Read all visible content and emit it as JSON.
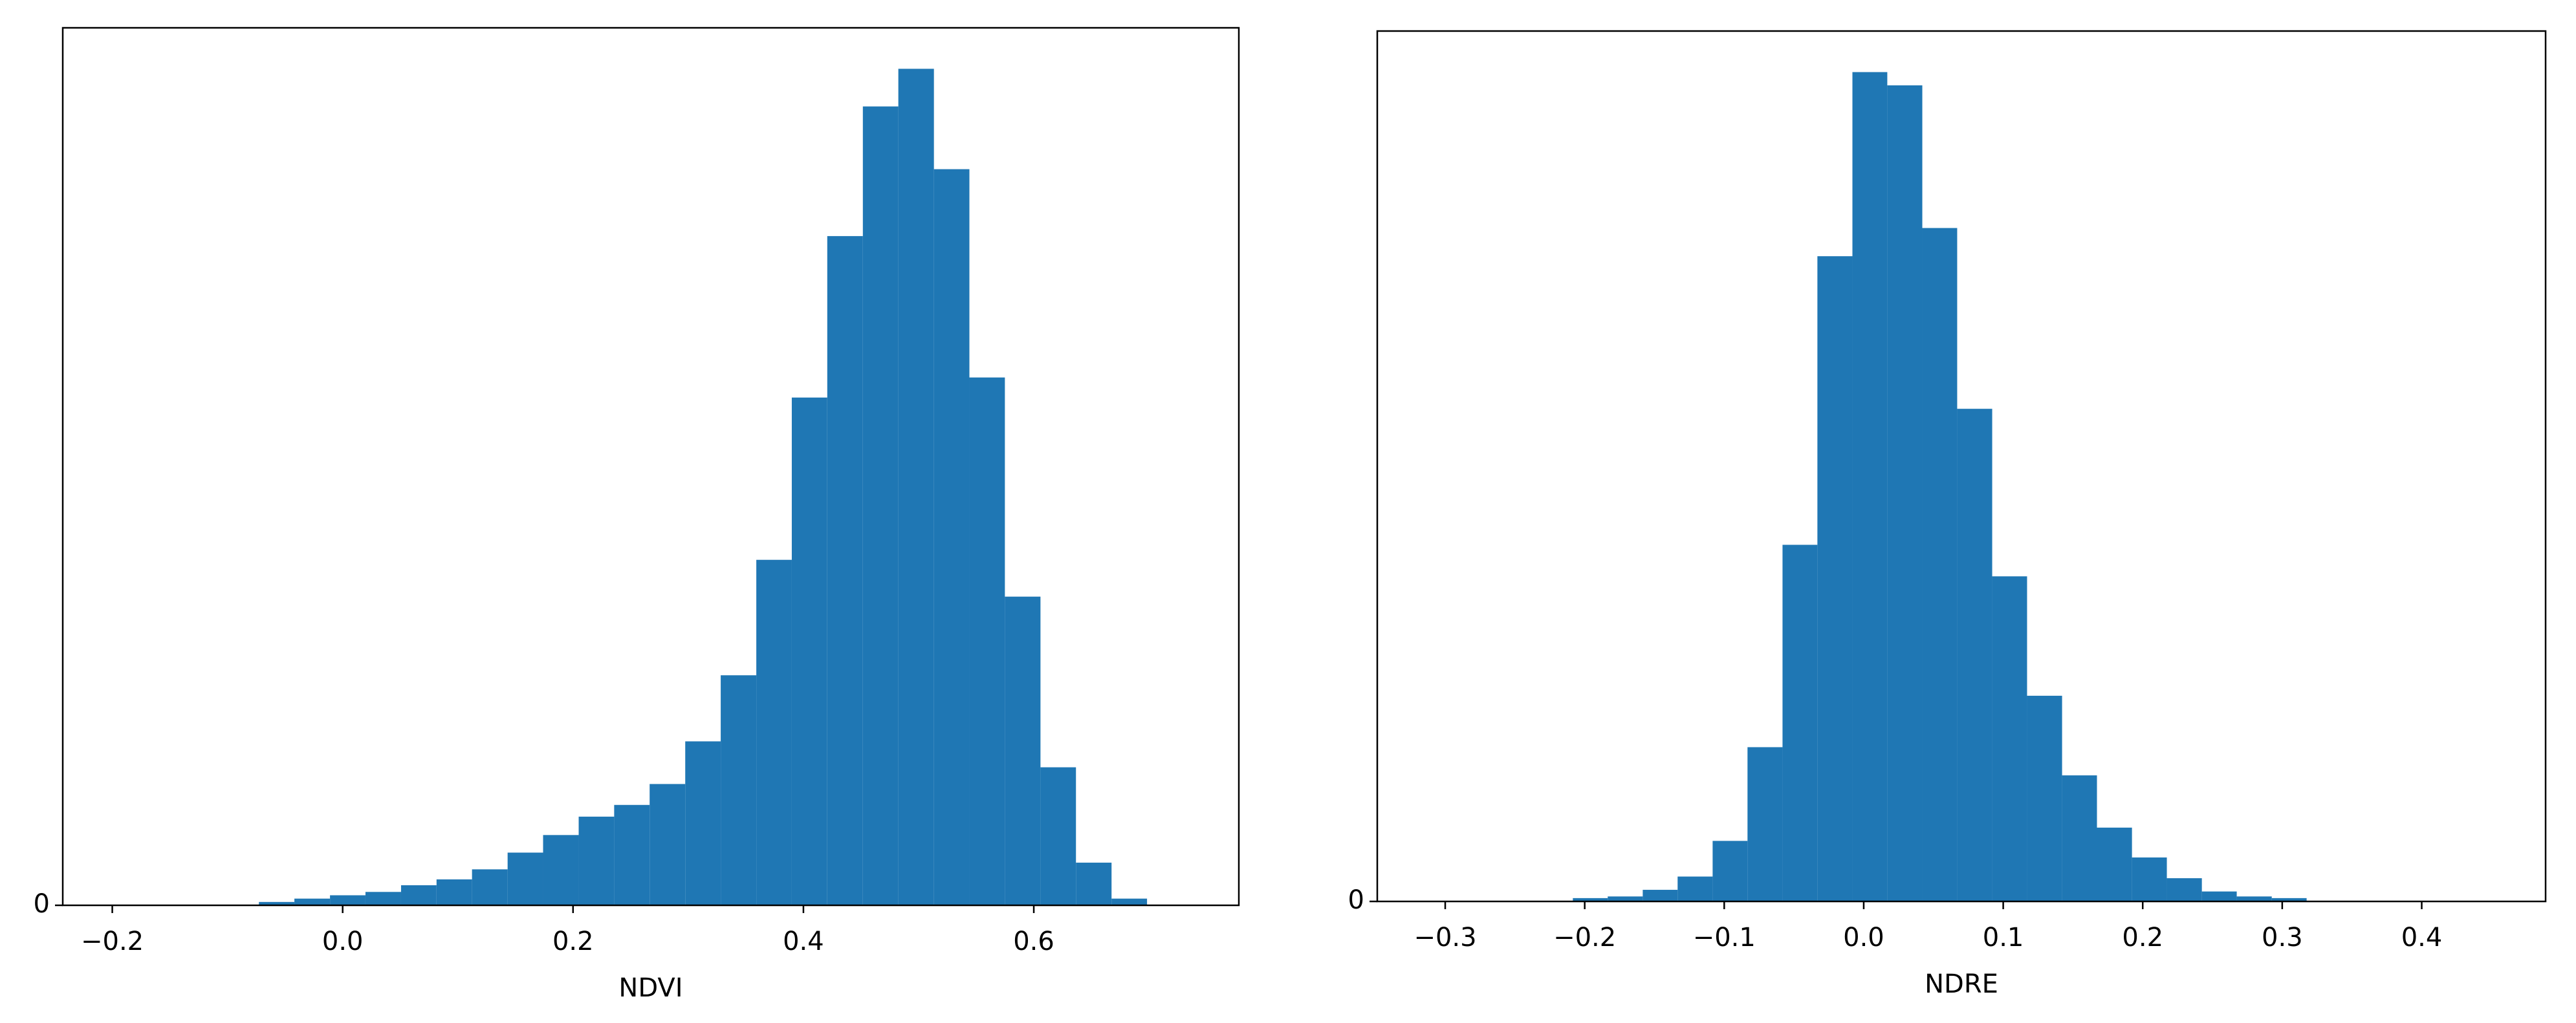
{
  "chart_data": [
    {
      "type": "histogram",
      "x_label": "NDVI",
      "color": "#1f77b4",
      "bins": [
        -0.0727,
        -0.0419,
        -0.011,
        0.0198,
        0.0507,
        0.0815,
        0.1123,
        0.1432,
        0.174,
        0.2049,
        0.2357,
        0.2665,
        0.2974,
        0.3282,
        0.3591,
        0.3899,
        0.4207,
        0.4516,
        0.4824,
        0.5133,
        0.5441,
        0.5749,
        0.6058,
        0.6366,
        0.6675,
        0.6983
      ],
      "values": [
        0.4,
        0.8,
        1.2,
        1.6,
        2.4,
        3.1,
        4.3,
        6.3,
        8.4,
        10.6,
        12.0,
        14.5,
        19.6,
        27.5,
        41.3,
        60.7,
        80.0,
        95.5,
        100,
        88.0,
        63.1,
        36.9,
        16.5,
        5.1,
        0.8
      ],
      "xlim": [
        -0.243,
        0.778
      ],
      "ylim": [
        0,
        104.9
      ],
      "xticks": [
        {
          "value": -0.2,
          "label": "−0.2"
        },
        {
          "value": 0,
          "label": "0.0"
        },
        0.2,
        0.4,
        0.6
      ],
      "yticks": [
        0
      ]
    },
    {
      "type": "histogram",
      "x_label": "NDRE",
      "color": "#1f77b4",
      "bins": [
        -0.2085,
        -0.1835,
        -0.1584,
        -0.1334,
        -0.1083,
        -0.0833,
        -0.0582,
        -0.0332,
        -0.0081,
        0.0169,
        0.042,
        0.067,
        0.0921,
        0.1171,
        0.1422,
        0.1672,
        0.1923,
        0.2173,
        0.2424,
        0.2674,
        0.2925,
        0.3175
      ],
      "values": [
        0.4,
        0.6,
        1.4,
        3.0,
        7.3,
        18.6,
        43.0,
        77.8,
        100,
        98.4,
        81.2,
        59.4,
        39.2,
        24.8,
        15.2,
        8.9,
        5.3,
        2.8,
        1.2,
        0.6,
        0.4
      ],
      "xlim": [
        -0.3487,
        0.4888
      ],
      "ylim": [
        0,
        104.95
      ],
      "xticks": [
        {
          "value": -0.3,
          "label": "−0.3"
        },
        {
          "value": -0.2,
          "label": "−0.2"
        },
        {
          "value": -0.1,
          "label": "−0.1"
        },
        {
          "value": 0,
          "label": "0.0"
        },
        0.1,
        0.2,
        0.3,
        0.4
      ],
      "yticks": [
        0
      ]
    }
  ]
}
